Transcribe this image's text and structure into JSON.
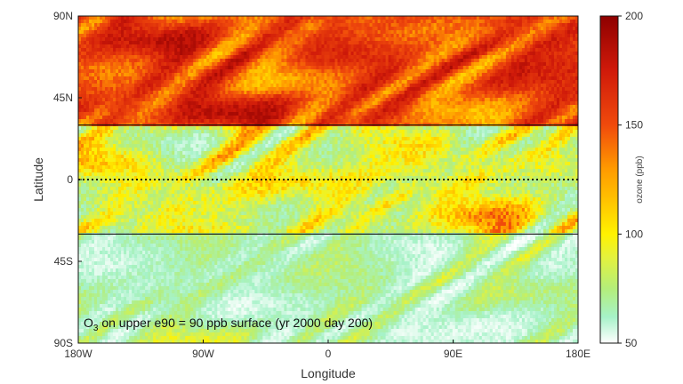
{
  "chart_data": {
    "type": "heatmap",
    "title": "",
    "xlabel": "Longitude",
    "ylabel": "Latitude",
    "x_ticks": [
      "180W",
      "90W",
      "0",
      "90E",
      "180E"
    ],
    "y_ticks": [
      "90N",
      "45N",
      "0",
      "45S",
      "90S"
    ],
    "xlim": [
      -180,
      180
    ],
    "ylim": [
      -90,
      90
    ],
    "colorbar": {
      "label": "ozone (ppb)",
      "range": [
        50,
        200
      ],
      "ticks": [
        "50",
        "100",
        "150",
        "200"
      ],
      "stops": [
        {
          "value": 50,
          "color": "#ffffff"
        },
        {
          "value": 62,
          "color": "#a6f2c8"
        },
        {
          "value": 75,
          "color": "#b4ee7a"
        },
        {
          "value": 90,
          "color": "#e6f23a"
        },
        {
          "value": 100,
          "color": "#fff200"
        },
        {
          "value": 115,
          "color": "#ffc400"
        },
        {
          "value": 130,
          "color": "#ff9a00"
        },
        {
          "value": 150,
          "color": "#f04a0c"
        },
        {
          "value": 175,
          "color": "#d01a0a"
        },
        {
          "value": 200,
          "color": "#8e0000"
        }
      ]
    },
    "horizontal_lines": [
      {
        "latitude": 30,
        "style": "solid"
      },
      {
        "latitude": 0,
        "style": "dotted"
      },
      {
        "latitude": -30,
        "style": "solid"
      }
    ],
    "annotation": {
      "prefix": "O",
      "sub": "3",
      "text": " on upper e90 = 90 ppb surface (yr 2000 day 200)"
    },
    "field_description": {
      "north_of_30N_ppb": [
        110,
        190
      ],
      "tropics_ppb": [
        55,
        150
      ],
      "south_of_30S_ppb": [
        50,
        100
      ]
    }
  }
}
